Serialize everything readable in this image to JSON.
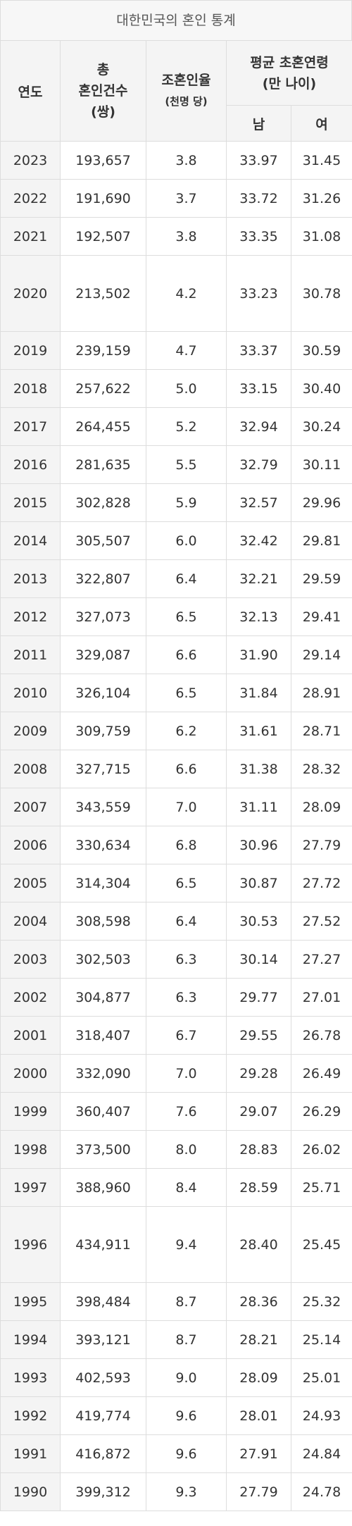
{
  "caption": "대한민국의 혼인 통계",
  "header": {
    "year": "연도",
    "marriages": [
      "총",
      "혼인건수",
      "(쌍)"
    ],
    "rate": [
      "조혼인율",
      "(천명 당)"
    ],
    "age": [
      "평균 초혼연령",
      "(만 나이)"
    ],
    "male": "남",
    "female": "여"
  },
  "rows": [
    [
      "2023",
      "193,657",
      "3.8",
      "33.97",
      "31.45"
    ],
    [
      "2022",
      "191,690",
      "3.7",
      "33.72",
      "31.26"
    ],
    [
      "2021",
      "192,507",
      "3.8",
      "33.35",
      "31.08"
    ],
    [
      "2020",
      "213,502",
      "4.2",
      "33.23",
      "30.78"
    ],
    [
      "2019",
      "239,159",
      "4.7",
      "33.37",
      "30.59"
    ],
    [
      "2018",
      "257,622",
      "5.0",
      "33.15",
      "30.40"
    ],
    [
      "2017",
      "264,455",
      "5.2",
      "32.94",
      "30.24"
    ],
    [
      "2016",
      "281,635",
      "5.5",
      "32.79",
      "30.11"
    ],
    [
      "2015",
      "302,828",
      "5.9",
      "32.57",
      "29.96"
    ],
    [
      "2014",
      "305,507",
      "6.0",
      "32.42",
      "29.81"
    ],
    [
      "2013",
      "322,807",
      "6.4",
      "32.21",
      "29.59"
    ],
    [
      "2012",
      "327,073",
      "6.5",
      "32.13",
      "29.41"
    ],
    [
      "2011",
      "329,087",
      "6.6",
      "31.90",
      "29.14"
    ],
    [
      "2010",
      "326,104",
      "6.5",
      "31.84",
      "28.91"
    ],
    [
      "2009",
      "309,759",
      "6.2",
      "31.61",
      "28.71"
    ],
    [
      "2008",
      "327,715",
      "6.6",
      "31.38",
      "28.32"
    ],
    [
      "2007",
      "343,559",
      "7.0",
      "31.11",
      "28.09"
    ],
    [
      "2006",
      "330,634",
      "6.8",
      "30.96",
      "27.79"
    ],
    [
      "2005",
      "314,304",
      "6.5",
      "30.87",
      "27.72"
    ],
    [
      "2004",
      "308,598",
      "6.4",
      "30.53",
      "27.52"
    ],
    [
      "2003",
      "302,503",
      "6.3",
      "30.14",
      "27.27"
    ],
    [
      "2002",
      "304,877",
      "6.3",
      "29.77",
      "27.01"
    ],
    [
      "2001",
      "318,407",
      "6.7",
      "29.55",
      "26.78"
    ],
    [
      "2000",
      "332,090",
      "7.0",
      "29.28",
      "26.49"
    ],
    [
      "1999",
      "360,407",
      "7.6",
      "29.07",
      "26.29"
    ],
    [
      "1998",
      "373,500",
      "8.0",
      "28.83",
      "26.02"
    ],
    [
      "1997",
      "388,960",
      "8.4",
      "28.59",
      "25.71"
    ],
    [
      "1996",
      "434,911",
      "9.4",
      "28.40",
      "25.45"
    ],
    [
      "1995",
      "398,484",
      "8.7",
      "28.36",
      "25.32"
    ],
    [
      "1994",
      "393,121",
      "8.7",
      "28.21",
      "25.14"
    ],
    [
      "1993",
      "402,593",
      "9.0",
      "28.09",
      "25.01"
    ],
    [
      "1992",
      "419,774",
      "9.6",
      "28.01",
      "24.93"
    ],
    [
      "1991",
      "416,872",
      "9.6",
      "27.91",
      "24.84"
    ],
    [
      "1990",
      "399,312",
      "9.3",
      "27.79",
      "24.78"
    ]
  ]
}
